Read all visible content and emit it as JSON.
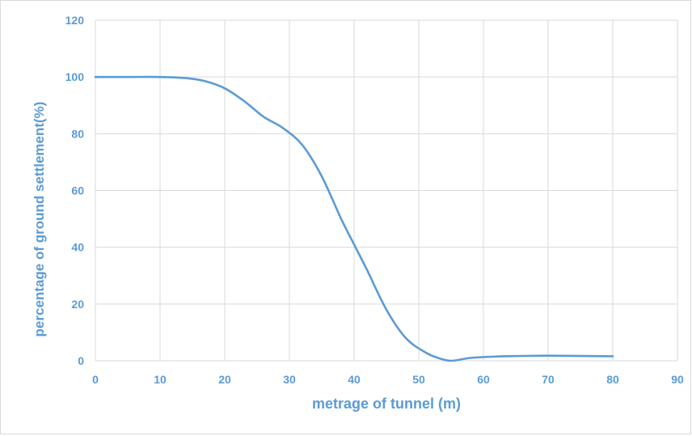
{
  "chart_data": {
    "type": "line",
    "title": "",
    "xlabel": "metrage of tunnel (m)",
    "ylabel": "percentage of ground settlement(%)",
    "xlim": [
      0,
      90
    ],
    "ylim": [
      0,
      120
    ],
    "x_ticks": [
      "0",
      "10",
      "20",
      "30",
      "40",
      "50",
      "60",
      "70",
      "80",
      "90"
    ],
    "y_ticks": [
      "0",
      "20",
      "40",
      "60",
      "80",
      "100",
      "120"
    ],
    "grid": true,
    "legend": "none",
    "colors": {
      "line": "#5b9bd5",
      "text": "#5b9bd5",
      "grid": "#d9d9d9"
    },
    "series": [
      {
        "x": [
          0,
          5,
          10,
          14,
          17,
          20,
          23,
          26,
          29,
          32,
          35,
          38,
          40,
          42,
          45,
          48,
          51,
          53,
          55,
          58,
          62,
          66,
          70,
          75,
          80
        ],
        "y": [
          100,
          100,
          100,
          99.6,
          98.5,
          96,
          91.5,
          86,
          82,
          76,
          65,
          50,
          41,
          32,
          18,
          8,
          3,
          1,
          0,
          1,
          1.5,
          1.7,
          1.8,
          1.7,
          1.6
        ]
      }
    ]
  }
}
